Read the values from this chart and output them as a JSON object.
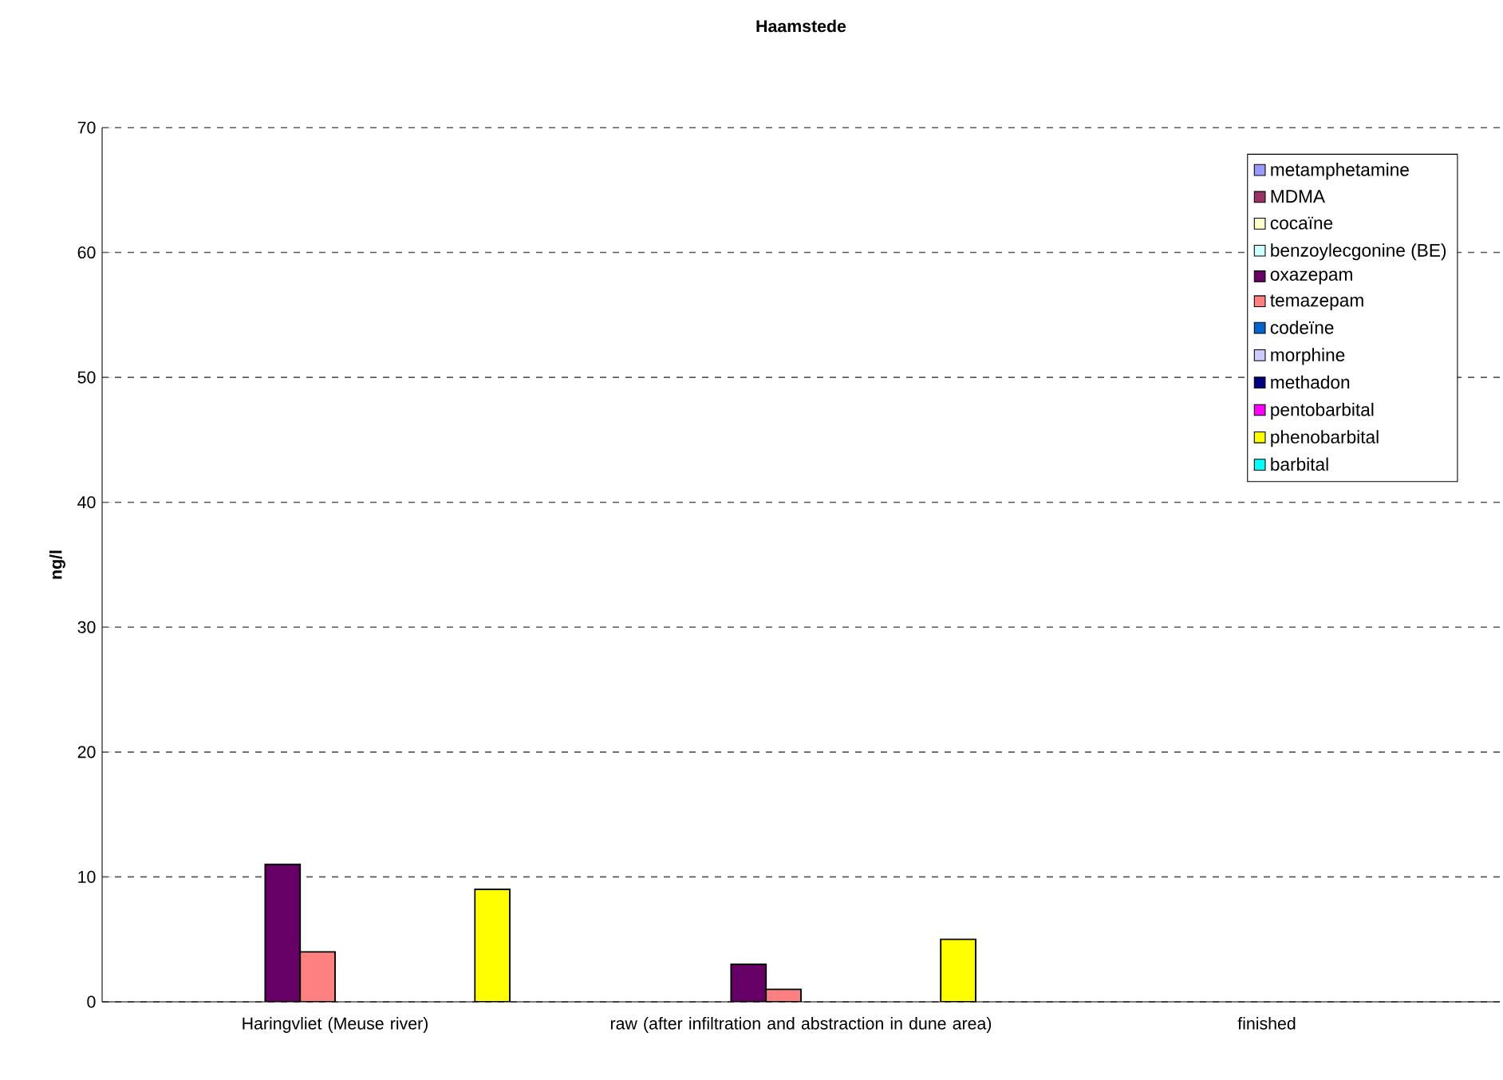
{
  "chart_data": {
    "type": "bar",
    "title": "Haamstede",
    "ylabel": "ng/l",
    "categories": [
      "Haringvliet (Meuse river)",
      "raw (after infiltration and abstraction in dune area)",
      "finished"
    ],
    "series": [
      {
        "name": "metamphetamine",
        "color": "#9999ff",
        "values": [
          null,
          null,
          null
        ]
      },
      {
        "name": "MDMA",
        "color": "#993366",
        "values": [
          null,
          null,
          null
        ]
      },
      {
        "name": "cocaïne",
        "color": "#ffffcc",
        "values": [
          null,
          null,
          null
        ]
      },
      {
        "name": "benzoylecgonine (BE)",
        "color": "#ccffff",
        "values": [
          null,
          null,
          null
        ]
      },
      {
        "name": "oxazepam",
        "color": "#660066",
        "values": [
          11,
          3,
          null
        ]
      },
      {
        "name": "temazepam",
        "color": "#ff8080",
        "values": [
          4,
          1,
          null
        ]
      },
      {
        "name": "codeïne",
        "color": "#0066cc",
        "values": [
          null,
          null,
          null
        ]
      },
      {
        "name": "morphine",
        "color": "#ccccff",
        "values": [
          null,
          null,
          null
        ]
      },
      {
        "name": "methadon",
        "color": "#000080",
        "values": [
          null,
          null,
          null
        ]
      },
      {
        "name": "pentobarbital",
        "color": "#ff00ff",
        "values": [
          null,
          null,
          null
        ]
      },
      {
        "name": "phenobarbital",
        "color": "#ffff00",
        "values": [
          9,
          5,
          null
        ]
      },
      {
        "name": "barbital",
        "color": "#00ffff",
        "values": [
          null,
          null,
          null
        ]
      }
    ],
    "ylim": [
      0,
      70
    ],
    "yticks": [
      0,
      10,
      20,
      30,
      40,
      50,
      60,
      70
    ],
    "grid": "y",
    "legend": "top right"
  }
}
